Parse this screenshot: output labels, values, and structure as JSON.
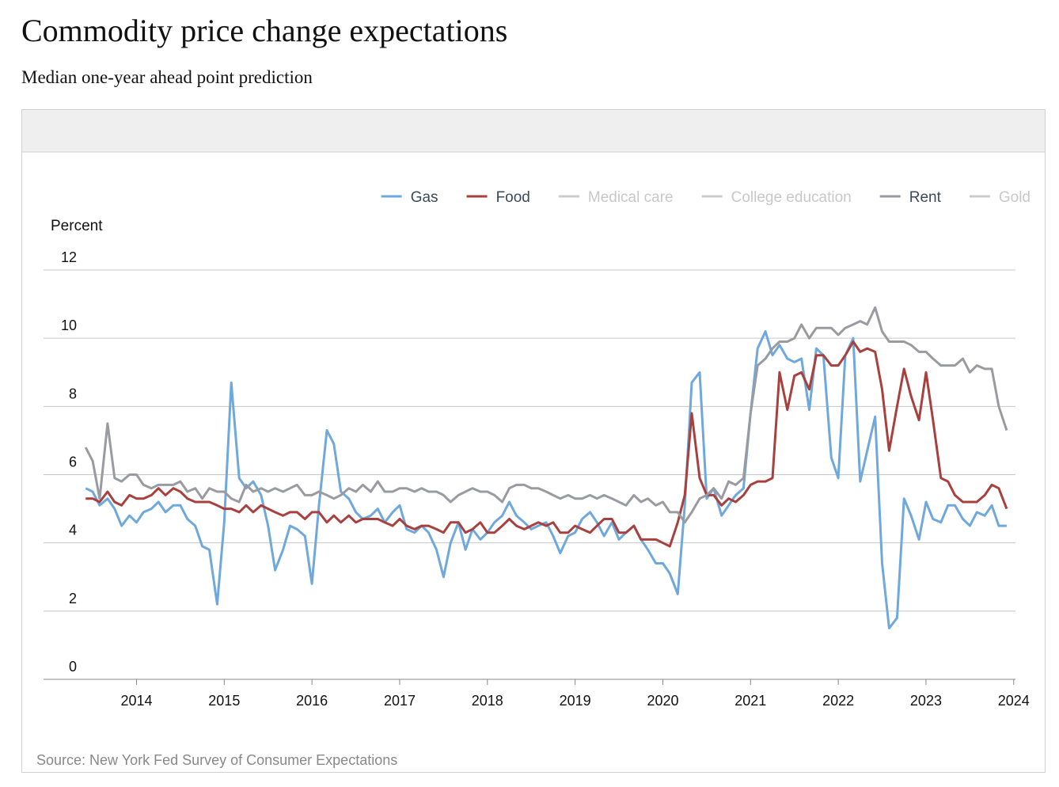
{
  "chart_data": {
    "type": "line",
    "title": "Commodity price change expectations",
    "subtitle": "Median one-year ahead point prediction",
    "y_label": "Percent",
    "source": "Source: New York Fed Survey of Consumer Expectations",
    "xlim": [
      2012.94,
      2024.02
    ],
    "xticks": [
      2014,
      2015,
      2016,
      2017,
      2018,
      2019,
      2020,
      2021,
      2022,
      2023,
      2024
    ],
    "ylim": [
      0,
      12
    ],
    "yticks": [
      0,
      2,
      4,
      6,
      8,
      10,
      12
    ],
    "grid": true,
    "x": [
      2013.42,
      2013.5,
      2013.58,
      2013.67,
      2013.75,
      2013.83,
      2013.92,
      2014.0,
      2014.08,
      2014.17,
      2014.25,
      2014.33,
      2014.42,
      2014.5,
      2014.58,
      2014.67,
      2014.75,
      2014.83,
      2014.92,
      2015.0,
      2015.08,
      2015.17,
      2015.25,
      2015.33,
      2015.42,
      2015.5,
      2015.58,
      2015.67,
      2015.75,
      2015.83,
      2015.92,
      2016.0,
      2016.08,
      2016.17,
      2016.25,
      2016.33,
      2016.42,
      2016.5,
      2016.58,
      2016.67,
      2016.75,
      2016.83,
      2016.92,
      2017.0,
      2017.08,
      2017.17,
      2017.25,
      2017.33,
      2017.42,
      2017.5,
      2017.58,
      2017.67,
      2017.75,
      2017.83,
      2017.92,
      2018.0,
      2018.08,
      2018.17,
      2018.25,
      2018.33,
      2018.42,
      2018.5,
      2018.58,
      2018.67,
      2018.75,
      2018.83,
      2018.92,
      2019.0,
      2019.08,
      2019.17,
      2019.25,
      2019.33,
      2019.42,
      2019.5,
      2019.58,
      2019.67,
      2019.75,
      2019.83,
      2019.92,
      2020.0,
      2020.08,
      2020.17,
      2020.25,
      2020.33,
      2020.42,
      2020.5,
      2020.58,
      2020.67,
      2020.75,
      2020.83,
      2020.92,
      2021.0,
      2021.08,
      2021.17,
      2021.25,
      2021.33,
      2021.42,
      2021.5,
      2021.58,
      2021.67,
      2021.75,
      2021.83,
      2021.92,
      2022.0,
      2022.08,
      2022.17,
      2022.25,
      2022.33,
      2022.42,
      2022.5,
      2022.58,
      2022.67,
      2022.75,
      2022.83,
      2022.92,
      2023.0,
      2023.08,
      2023.17,
      2023.25,
      2023.33,
      2023.42,
      2023.5,
      2023.58,
      2023.67,
      2023.75,
      2023.83,
      2023.92
    ],
    "series": [
      {
        "name": "Gas",
        "color": "#6fa8dc",
        "visible": true,
        "values": [
          5.6,
          5.5,
          5.1,
          5.3,
          5.0,
          4.5,
          4.8,
          4.6,
          4.9,
          5.0,
          5.2,
          4.9,
          5.1,
          5.1,
          4.7,
          4.5,
          3.9,
          3.8,
          2.2,
          4.6,
          8.7,
          5.9,
          5.6,
          5.8,
          5.4,
          4.5,
          3.2,
          3.8,
          4.5,
          4.4,
          4.2,
          2.8,
          5.1,
          7.3,
          6.9,
          5.5,
          5.3,
          4.9,
          4.7,
          4.8,
          5.0,
          4.6,
          4.9,
          5.1,
          4.4,
          4.3,
          4.5,
          4.3,
          3.8,
          3.0,
          4.0,
          4.6,
          3.8,
          4.4,
          4.1,
          4.3,
          4.6,
          4.8,
          5.2,
          4.8,
          4.6,
          4.4,
          4.5,
          4.6,
          4.2,
          3.7,
          4.2,
          4.3,
          4.7,
          4.9,
          4.6,
          4.2,
          4.6,
          4.1,
          4.3,
          4.5,
          4.1,
          3.8,
          3.4,
          3.4,
          3.1,
          2.5,
          5.1,
          8.7,
          9.0,
          5.3,
          5.6,
          4.8,
          5.1,
          5.4,
          5.6,
          7.8,
          9.7,
          10.2,
          9.5,
          9.8,
          9.4,
          9.3,
          9.4,
          7.9,
          9.7,
          9.5,
          6.5,
          5.9,
          9.5,
          10.0,
          5.8,
          6.7,
          7.7,
          3.4,
          1.5,
          1.8,
          5.3,
          4.8,
          4.1,
          5.2,
          4.7,
          4.6,
          5.1,
          5.1,
          4.7,
          4.5,
          4.9,
          4.8,
          5.1,
          4.5,
          4.5
        ]
      },
      {
        "name": "Food",
        "color": "#a8403e",
        "visible": true,
        "values": [
          5.3,
          5.3,
          5.2,
          5.5,
          5.2,
          5.1,
          5.4,
          5.3,
          5.3,
          5.4,
          5.6,
          5.4,
          5.6,
          5.5,
          5.3,
          5.2,
          5.2,
          5.2,
          5.1,
          5.0,
          5.0,
          4.9,
          5.1,
          4.9,
          5.1,
          5.0,
          4.9,
          4.8,
          4.9,
          4.9,
          4.7,
          4.9,
          4.9,
          4.6,
          4.8,
          4.6,
          4.8,
          4.6,
          4.7,
          4.7,
          4.7,
          4.6,
          4.5,
          4.7,
          4.5,
          4.4,
          4.5,
          4.5,
          4.4,
          4.3,
          4.6,
          4.6,
          4.3,
          4.4,
          4.6,
          4.3,
          4.3,
          4.5,
          4.7,
          4.5,
          4.4,
          4.5,
          4.6,
          4.5,
          4.6,
          4.3,
          4.3,
          4.5,
          4.4,
          4.3,
          4.5,
          4.7,
          4.7,
          4.3,
          4.3,
          4.5,
          4.1,
          4.1,
          4.1,
          4.0,
          3.9,
          4.6,
          5.4,
          7.8,
          5.9,
          5.4,
          5.4,
          5.1,
          5.3,
          5.2,
          5.4,
          5.7,
          5.8,
          5.8,
          5.9,
          9.0,
          7.9,
          8.9,
          9.0,
          8.5,
          9.5,
          9.5,
          9.2,
          9.2,
          9.5,
          9.9,
          9.6,
          9.7,
          9.6,
          8.5,
          6.7,
          8.0,
          9.1,
          8.3,
          7.6,
          9.0,
          7.6,
          5.9,
          5.8,
          5.4,
          5.2,
          5.2,
          5.2,
          5.4,
          5.7,
          5.6,
          5.0
        ]
      },
      {
        "name": "Medical care",
        "color": "#cccccc",
        "visible": false
      },
      {
        "name": "College education",
        "color": "#cccccc",
        "visible": false
      },
      {
        "name": "Rent",
        "color": "#9a9ba1",
        "visible": true,
        "values": [
          6.8,
          6.4,
          5.3,
          7.5,
          5.9,
          5.8,
          6.0,
          6.0,
          5.7,
          5.6,
          5.7,
          5.7,
          5.7,
          5.8,
          5.5,
          5.6,
          5.3,
          5.6,
          5.5,
          5.5,
          5.3,
          5.2,
          5.7,
          5.5,
          5.6,
          5.5,
          5.6,
          5.5,
          5.6,
          5.7,
          5.4,
          5.4,
          5.5,
          5.4,
          5.3,
          5.4,
          5.6,
          5.5,
          5.7,
          5.5,
          5.8,
          5.5,
          5.5,
          5.6,
          5.6,
          5.5,
          5.6,
          5.5,
          5.5,
          5.4,
          5.2,
          5.4,
          5.5,
          5.6,
          5.5,
          5.5,
          5.4,
          5.2,
          5.6,
          5.7,
          5.7,
          5.6,
          5.6,
          5.5,
          5.4,
          5.3,
          5.4,
          5.3,
          5.3,
          5.4,
          5.3,
          5.4,
          5.3,
          5.2,
          5.1,
          5.4,
          5.2,
          5.3,
          5.1,
          5.2,
          4.9,
          4.9,
          4.6,
          4.9,
          5.3,
          5.4,
          5.6,
          5.3,
          5.8,
          5.7,
          5.9,
          7.8,
          9.2,
          9.4,
          9.7,
          9.9,
          9.9,
          10.0,
          10.4,
          10.0,
          10.3,
          10.3,
          10.3,
          10.1,
          10.3,
          10.4,
          10.5,
          10.4,
          10.9,
          10.2,
          9.9,
          9.9,
          9.9,
          9.8,
          9.6,
          9.6,
          9.4,
          9.2,
          9.2,
          9.2,
          9.4,
          9.0,
          9.2,
          9.1,
          9.1,
          8.0,
          7.3
        ]
      },
      {
        "name": "Gold",
        "color": "#cccccc",
        "visible": false
      }
    ]
  }
}
